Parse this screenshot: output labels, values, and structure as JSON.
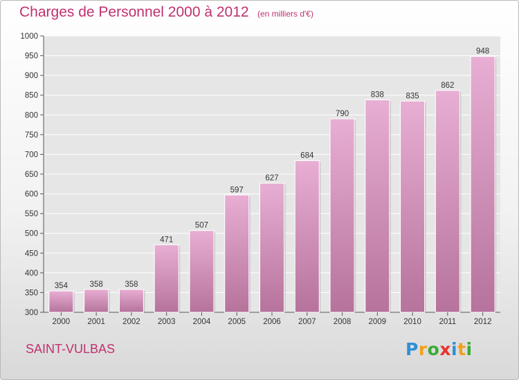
{
  "header": {
    "title": "Charges de Personnel 2000 à 2012",
    "subtitle": "(en milliers d'€)"
  },
  "footer": {
    "commune": "SAINT-VULBAS",
    "logo_letters": [
      "P",
      "r",
      "o",
      "x",
      "i",
      "t",
      "i"
    ],
    "logo_colors": [
      "#2e8fd6",
      "#f0a020",
      "#3aaa35",
      "#e8322c",
      "#2e8fd6",
      "#f0a020",
      "#3aaa35"
    ]
  },
  "colors": {
    "bar_top": "#e8aed3",
    "bar_bottom": "#b6739c",
    "plot_bg": "#e6e6e6",
    "grid": "#ffffff",
    "title": "#c0306f"
  },
  "chart_data": {
    "type": "bar",
    "categories": [
      "2000",
      "2001",
      "2002",
      "2003",
      "2004",
      "2005",
      "2006",
      "2007",
      "2008",
      "2009",
      "2010",
      "2011",
      "2012"
    ],
    "values": [
      354,
      358,
      358,
      471,
      507,
      597,
      627,
      684,
      790,
      838,
      835,
      862,
      948
    ],
    "title": "Charges de Personnel 2000 à 2012",
    "subtitle": "(en milliers d'€)",
    "ylim": [
      300,
      1000
    ],
    "yticks": [
      300,
      350,
      400,
      450,
      500,
      550,
      600,
      650,
      700,
      750,
      800,
      850,
      900,
      950,
      1000
    ],
    "grid": true,
    "data_labels": true
  }
}
